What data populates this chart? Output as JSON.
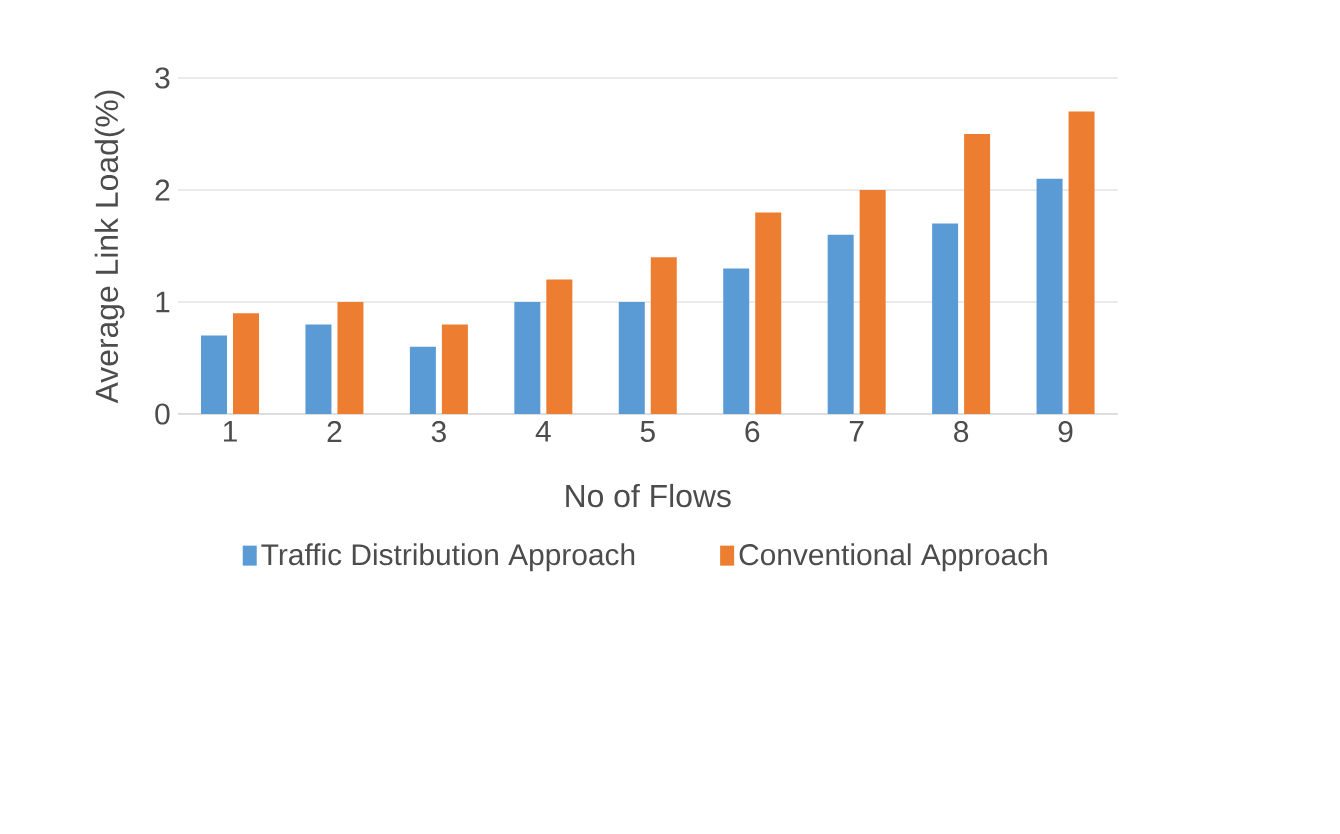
{
  "chart_data": {
    "type": "bar",
    "xlabel": "No of Flows",
    "ylabel": "Average Link Load(%)",
    "categories": [
      "1",
      "2",
      "3",
      "4",
      "5",
      "6",
      "7",
      "8",
      "9"
    ],
    "series": [
      {
        "name": "Traffic Distribution Approach",
        "color": "#5b9bd5",
        "values": [
          0.7,
          0.8,
          0.6,
          1.0,
          1.0,
          1.3,
          1.6,
          1.7,
          2.1
        ]
      },
      {
        "name": "Conventional Approach",
        "color": "#ed7d31",
        "values": [
          0.9,
          1.0,
          0.8,
          1.2,
          1.4,
          1.8,
          2.0,
          2.5,
          2.7
        ]
      }
    ],
    "ylim": [
      0,
      3
    ],
    "yticks": [
      0,
      1,
      2,
      3
    ],
    "grid": "y",
    "legend": "bottom"
  }
}
